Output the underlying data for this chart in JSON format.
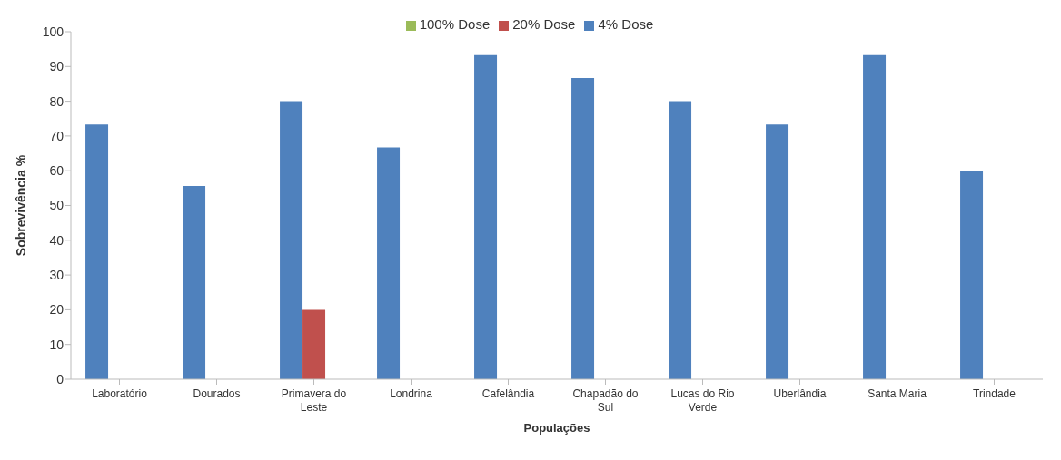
{
  "chart_data": {
    "type": "bar",
    "xlabel": "Populações",
    "ylabel": "Sobrevivência %",
    "categories": [
      "Laboratório",
      "Dourados",
      "Primavera do Leste",
      "Londrina",
      "Cafelândia",
      "Chapadão do Sul",
      "Lucas do Rio Verde",
      "Uberlândia",
      "Santa Maria",
      "Trindade"
    ],
    "series": [
      {
        "name": "4% Dose",
        "color": "#4f81bd",
        "values": [
          73.3,
          55.6,
          80,
          66.7,
          93.3,
          86.7,
          80,
          73.3,
          93.3,
          60
        ]
      },
      {
        "name": "20% Dose",
        "color": "#c0504d",
        "values": [
          0,
          0,
          20,
          0,
          0,
          0,
          0,
          0,
          0,
          0
        ]
      },
      {
        "name": "100% Dose",
        "color": "#9bbb59",
        "values": [
          0,
          0,
          0,
          0,
          0,
          0,
          0,
          0,
          0,
          0
        ]
      }
    ],
    "ylim": [
      0,
      100
    ],
    "yticks": [
      0,
      10,
      20,
      30,
      40,
      50,
      60,
      70,
      80,
      90,
      100
    ],
    "grid": false,
    "legend": "top"
  }
}
